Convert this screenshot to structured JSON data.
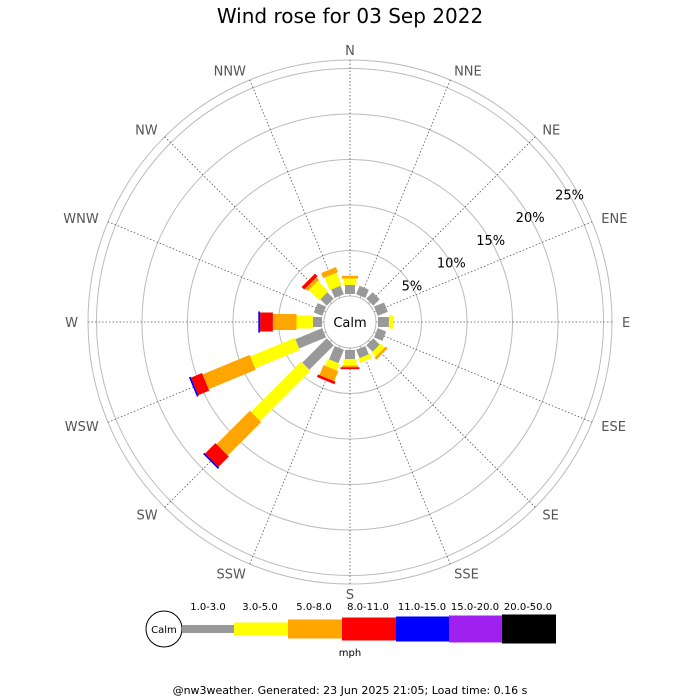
{
  "title": "Wind rose for 03 Sep 2022",
  "footer": "@nw3weather. Generated: 23 Jun 2025 21:05; Load time: 0.16 s",
  "chart_data": {
    "type": "wind-rose",
    "title": "Wind rose for 03 Sep 2022",
    "directions": [
      "N",
      "NNE",
      "NE",
      "ENE",
      "E",
      "ESE",
      "SE",
      "SSE",
      "S",
      "SSW",
      "SW",
      "WSW",
      "W",
      "WNW",
      "NW",
      "NNW"
    ],
    "calm_label": "Calm",
    "rings": [
      5,
      10,
      15,
      20,
      25
    ],
    "ring_labels": [
      "5%",
      "10%",
      "15%",
      "20%",
      "25%"
    ],
    "unit": "mph",
    "speed_bins": [
      {
        "label": "1.0-3.0",
        "color": "#999999"
      },
      {
        "label": "3.0-5.0",
        "color": "#ffff00"
      },
      {
        "label": "5.0-8.0",
        "color": "#ffa500"
      },
      {
        "label": "8.0-11.0",
        "color": "#ff0000"
      },
      {
        "label": "11.0-15.0",
        "color": "#0000ff"
      },
      {
        "label": "15.0-20.0",
        "color": "#a020f0"
      },
      {
        "label": "20.0-50.0",
        "color": "#000000"
      }
    ],
    "frequencies": {
      "N": [
        1.0,
        0.7,
        0.3,
        0,
        0,
        0,
        0
      ],
      "NNE": [
        1.0,
        0,
        0,
        0,
        0,
        0,
        0
      ],
      "NE": [
        1.0,
        0,
        0,
        0,
        0,
        0,
        0
      ],
      "ENE": [
        1.2,
        0,
        0,
        0,
        0,
        0,
        0
      ],
      "E": [
        1.2,
        0.5,
        0,
        0,
        0,
        0,
        0
      ],
      "ESE": [
        1.0,
        0,
        0,
        0,
        0,
        0,
        0
      ],
      "SE": [
        1.0,
        0.6,
        0.3,
        0,
        0,
        0,
        0
      ],
      "SSE": [
        1.0,
        0.5,
        0,
        0,
        0,
        0,
        0
      ],
      "S": [
        1.0,
        0.7,
        0.2,
        0.2,
        0,
        0,
        0
      ],
      "SSW": [
        1.6,
        0.8,
        1.2,
        0.3,
        0,
        0,
        0
      ],
      "SW": [
        3.8,
        7.8,
        5.2,
        1.6,
        0.2,
        0,
        0
      ],
      "WSW": [
        3.2,
        5.3,
        5.6,
        1.3,
        0.2,
        0,
        0
      ],
      "W": [
        1.0,
        1.8,
        2.6,
        1.4,
        0.2,
        0,
        0
      ],
      "WNW": [
        1.0,
        0,
        0,
        0,
        0,
        0,
        0
      ],
      "NW": [
        1.0,
        1.6,
        0.4,
        0.4,
        0,
        0,
        0
      ],
      "NNW": [
        1.0,
        1.5,
        0.6,
        0,
        0,
        0,
        0
      ]
    }
  }
}
